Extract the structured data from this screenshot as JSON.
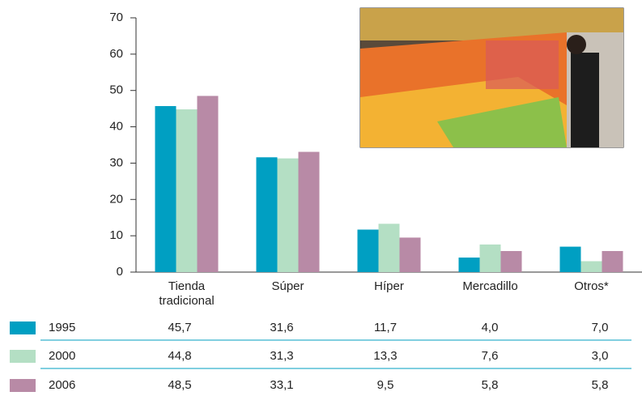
{
  "chart_data": {
    "type": "bar",
    "categories": [
      "Tienda tradicional",
      "Súper",
      "Híper",
      "Mercadillo",
      "Otros*"
    ],
    "series": [
      {
        "name": "1995",
        "color": "#009fc2",
        "values": [
          45.7,
          31.6,
          11.7,
          4.0,
          7.0
        ],
        "value_labels": [
          "45,7",
          "31,6",
          "11,7",
          "4,0",
          "7,0"
        ]
      },
      {
        "name": "2000",
        "color": "#b4dfc4",
        "values": [
          44.8,
          31.3,
          13.3,
          7.6,
          3.0
        ],
        "value_labels": [
          "44,8",
          "31,3",
          "13,3",
          "7,6",
          "3,0"
        ]
      },
      {
        "name": "2006",
        "color": "#b88aa6",
        "values": [
          48.5,
          33.1,
          9.5,
          5.8,
          5.8
        ],
        "value_labels": [
          "48,5",
          "33,1",
          "9,5",
          "5,8",
          "5,8"
        ]
      }
    ],
    "ylim": [
      0,
      70
    ],
    "yticks": [
      0,
      10,
      20,
      30,
      40,
      50,
      60,
      70
    ],
    "grid": false
  }
}
